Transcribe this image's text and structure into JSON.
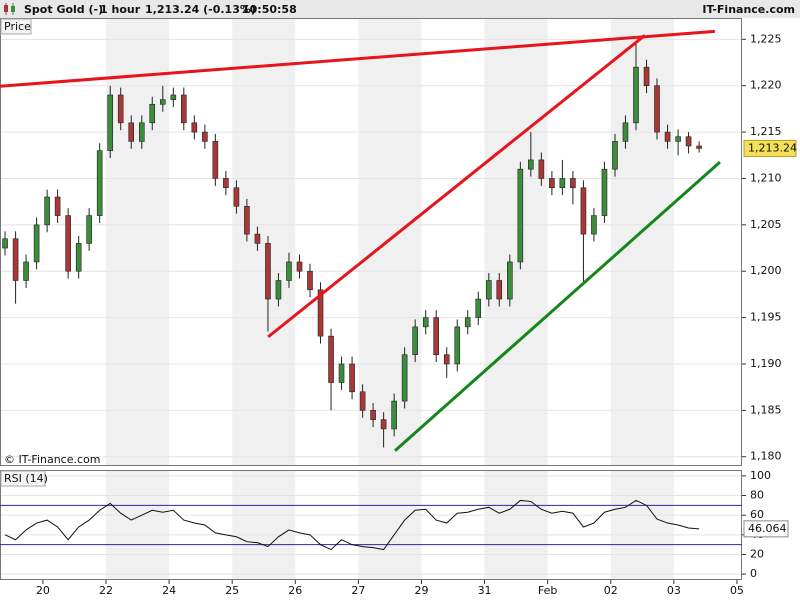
{
  "header": {
    "instrument": "Spot Gold (-)",
    "timeframe": "1 hour",
    "quote": "1,213.24 (-0.13%)",
    "time": "10:50:58",
    "brand": "IT-Finance.com"
  },
  "chart_data": [
    {
      "type": "candlestick",
      "panel_label": "Price",
      "copyright": "© IT-Finance.com",
      "up_color": "#3c8c3c",
      "down_color": "#a83838",
      "last_price_label": "1,213.24",
      "xlim": [
        -0.68,
        11.08
      ],
      "ylim": [
        1179,
        1227.3
      ],
      "xticks": [
        {
          "value": 0,
          "label": "20"
        },
        {
          "value": 1,
          "label": "22"
        },
        {
          "value": 2,
          "label": "24"
        },
        {
          "value": 3,
          "label": "25"
        },
        {
          "value": 4,
          "label": "26"
        },
        {
          "value": 5,
          "label": "27"
        },
        {
          "value": 6,
          "label": "29"
        },
        {
          "value": 7,
          "label": "31"
        },
        {
          "value": 8,
          "label": "Feb"
        },
        {
          "value": 9,
          "label": "02"
        },
        {
          "value": 10,
          "label": "03"
        },
        {
          "value": 11,
          "label": "05"
        }
      ],
      "yticks": [
        {
          "value": 1180,
          "label": "1,180"
        },
        {
          "value": 1185,
          "label": "1,185"
        },
        {
          "value": 1190,
          "label": "1,190"
        },
        {
          "value": 1195,
          "label": "1,195"
        },
        {
          "value": 1200,
          "label": "1,200"
        },
        {
          "value": 1205,
          "label": "1,205"
        },
        {
          "value": 1210,
          "label": "1,210"
        },
        {
          "value": 1215,
          "label": "1,215"
        },
        {
          "value": 1220,
          "label": "1,220"
        },
        {
          "value": 1225,
          "label": "1,225"
        }
      ],
      "x": [
        -0.6,
        -0.433,
        -0.267,
        -0.1,
        0.067,
        0.233,
        0.4,
        0.567,
        0.733,
        0.9,
        1.067,
        1.233,
        1.4,
        1.567,
        1.733,
        1.9,
        2.067,
        2.233,
        2.4,
        2.567,
        2.733,
        2.9,
        3.067,
        3.233,
        3.4,
        3.567,
        3.733,
        3.9,
        4.067,
        4.233,
        4.4,
        4.567,
        4.733,
        4.9,
        5.067,
        5.233,
        5.4,
        5.567,
        5.733,
        5.9,
        6.067,
        6.233,
        6.4,
        6.567,
        6.733,
        6.9,
        7.067,
        7.233,
        7.4,
        7.567,
        7.733,
        7.9,
        8.067,
        8.233,
        8.4,
        8.567,
        8.733,
        8.9,
        9.067,
        9.233,
        9.4,
        9.567,
        9.733,
        9.9,
        10.067,
        10.233,
        10.4
      ],
      "open": [
        1202.5,
        1203.5,
        1199,
        1201,
        1205,
        1208,
        1206,
        1200,
        1203,
        1206,
        1213,
        1219,
        1216,
        1214,
        1216,
        1218,
        1218.5,
        1219,
        1216,
        1215,
        1214,
        1210,
        1209,
        1207,
        1204,
        1203,
        1197,
        1199,
        1201,
        1200,
        1198,
        1193,
        1188,
        1190,
        1187,
        1185,
        1184,
        1183,
        1186,
        1191,
        1194,
        1195,
        1191,
        1190,
        1194,
        1195,
        1197,
        1199,
        1197,
        1201,
        1211,
        1212,
        1210,
        1209,
        1210,
        1209,
        1204,
        1206,
        1211,
        1214,
        1216,
        1222,
        1220,
        1215,
        1214,
        1214.5,
        1213.5
      ],
      "high": [
        1204.3,
        1204.3,
        1201.8,
        1205.8,
        1208.8,
        1208.8,
        1206.8,
        1203.8,
        1206.8,
        1213.8,
        1220,
        1219.8,
        1216.8,
        1216.8,
        1218.8,
        1220,
        1219.8,
        1219.8,
        1216.8,
        1215.8,
        1214.8,
        1210.8,
        1209.8,
        1207.8,
        1204.8,
        1203.8,
        1199.8,
        1202,
        1201.8,
        1200.8,
        1198.8,
        1193.8,
        1190.8,
        1190.8,
        1187.8,
        1185.8,
        1184.8,
        1186.8,
        1191.8,
        1194.8,
        1195.8,
        1195.8,
        1191.8,
        1194.8,
        1195.8,
        1197.8,
        1199.8,
        1199.8,
        1201.8,
        1211.8,
        1215,
        1212.8,
        1210.8,
        1212,
        1210.8,
        1209.8,
        1206.8,
        1211.8,
        1214.8,
        1216.8,
        1224.5,
        1222.8,
        1220.8,
        1215.8,
        1215.3,
        1215,
        1214
      ],
      "low": [
        1201.7,
        1196.5,
        1198.2,
        1200.2,
        1204.2,
        1205.2,
        1199.2,
        1199.2,
        1202.2,
        1205.2,
        1212.2,
        1215.2,
        1213.2,
        1213.2,
        1215.2,
        1217.2,
        1217.7,
        1215.2,
        1214.2,
        1213.2,
        1209.2,
        1208.2,
        1206.2,
        1203.2,
        1202.2,
        1193.5,
        1196.2,
        1198.2,
        1199.2,
        1197.2,
        1192.2,
        1185,
        1187.2,
        1186.2,
        1184.2,
        1183.2,
        1181,
        1182.2,
        1185.2,
        1190.2,
        1193.2,
        1190.2,
        1188.5,
        1189.2,
        1193.2,
        1194.2,
        1196.2,
        1196.2,
        1196.2,
        1200.2,
        1210.2,
        1209.2,
        1208.2,
        1208.2,
        1207.2,
        1198.5,
        1203.2,
        1205.2,
        1210.2,
        1213.2,
        1215.2,
        1219.2,
        1214.2,
        1213.2,
        1212.5,
        1212.7,
        1212.8
      ],
      "close": [
        1203.5,
        1199,
        1201,
        1205,
        1208,
        1206,
        1200,
        1203,
        1206,
        1213,
        1219,
        1216,
        1214,
        1216,
        1218,
        1218.5,
        1219,
        1216,
        1215,
        1214,
        1210,
        1209,
        1207,
        1204,
        1203,
        1197,
        1199,
        1201,
        1200,
        1198,
        1193,
        1188,
        1190,
        1187,
        1185,
        1184,
        1183,
        1186,
        1191,
        1194,
        1195,
        1191,
        1190,
        1194,
        1195,
        1197,
        1199,
        1197,
        1201,
        1211,
        1212,
        1210,
        1209,
        1210,
        1209,
        1204,
        1206,
        1211,
        1214,
        1216,
        1222,
        1220,
        1215,
        1214,
        1214.5,
        1213.5,
        1213.24
      ],
      "trendlines": [
        {
          "color": "#e8141c",
          "points": [
            [
              -0.68,
              1219.94
            ],
            [
              10.65,
              1225.86
            ]
          ]
        },
        {
          "color": "#e8141c",
          "points": [
            [
              3.57,
              1192.92
            ],
            [
              9.54,
              1225.43
            ]
          ]
        },
        {
          "color": "#14861c",
          "points": [
            [
              5.58,
              1180.65
            ],
            [
              10.73,
              1211.76
            ]
          ]
        }
      ]
    },
    {
      "type": "line",
      "panel_label": "RSI (14)",
      "color": "#111111",
      "level_color": "#2a2a9a",
      "xlim": [
        -0.68,
        11.08
      ],
      "ylim": [
        -6,
        106
      ],
      "yticks": [
        0,
        20,
        40,
        60,
        80,
        100
      ],
      "levels": [
        30,
        70
      ],
      "x": [
        -0.6,
        -0.433,
        -0.267,
        -0.1,
        0.067,
        0.233,
        0.4,
        0.567,
        0.733,
        0.9,
        1.067,
        1.233,
        1.4,
        1.567,
        1.733,
        1.9,
        2.067,
        2.233,
        2.4,
        2.567,
        2.733,
        2.9,
        3.067,
        3.233,
        3.4,
        3.567,
        3.733,
        3.9,
        4.067,
        4.233,
        4.4,
        4.567,
        4.733,
        4.9,
        5.067,
        5.233,
        5.4,
        5.567,
        5.733,
        5.9,
        6.067,
        6.233,
        6.4,
        6.567,
        6.733,
        6.9,
        7.067,
        7.233,
        7.4,
        7.567,
        7.733,
        7.9,
        8.067,
        8.233,
        8.4,
        8.567,
        8.733,
        8.9,
        9.067,
        9.233,
        9.4,
        9.567,
        9.733,
        9.9,
        10.067,
        10.233,
        10.4
      ],
      "values": [
        40,
        35,
        45,
        52,
        55,
        48,
        35,
        48,
        55,
        65,
        72,
        62,
        55,
        60,
        65,
        63,
        65,
        55,
        52,
        50,
        42,
        40,
        38,
        33,
        32,
        28,
        38,
        45,
        42,
        40,
        30,
        25,
        35,
        30,
        28,
        27,
        25,
        40,
        55,
        65,
        66,
        55,
        52,
        62,
        63,
        66,
        68,
        62,
        66,
        75,
        74,
        66,
        62,
        64,
        62,
        48,
        52,
        63,
        66,
        68,
        75,
        70,
        56,
        52,
        50,
        47,
        46.064
      ]
    }
  ]
}
